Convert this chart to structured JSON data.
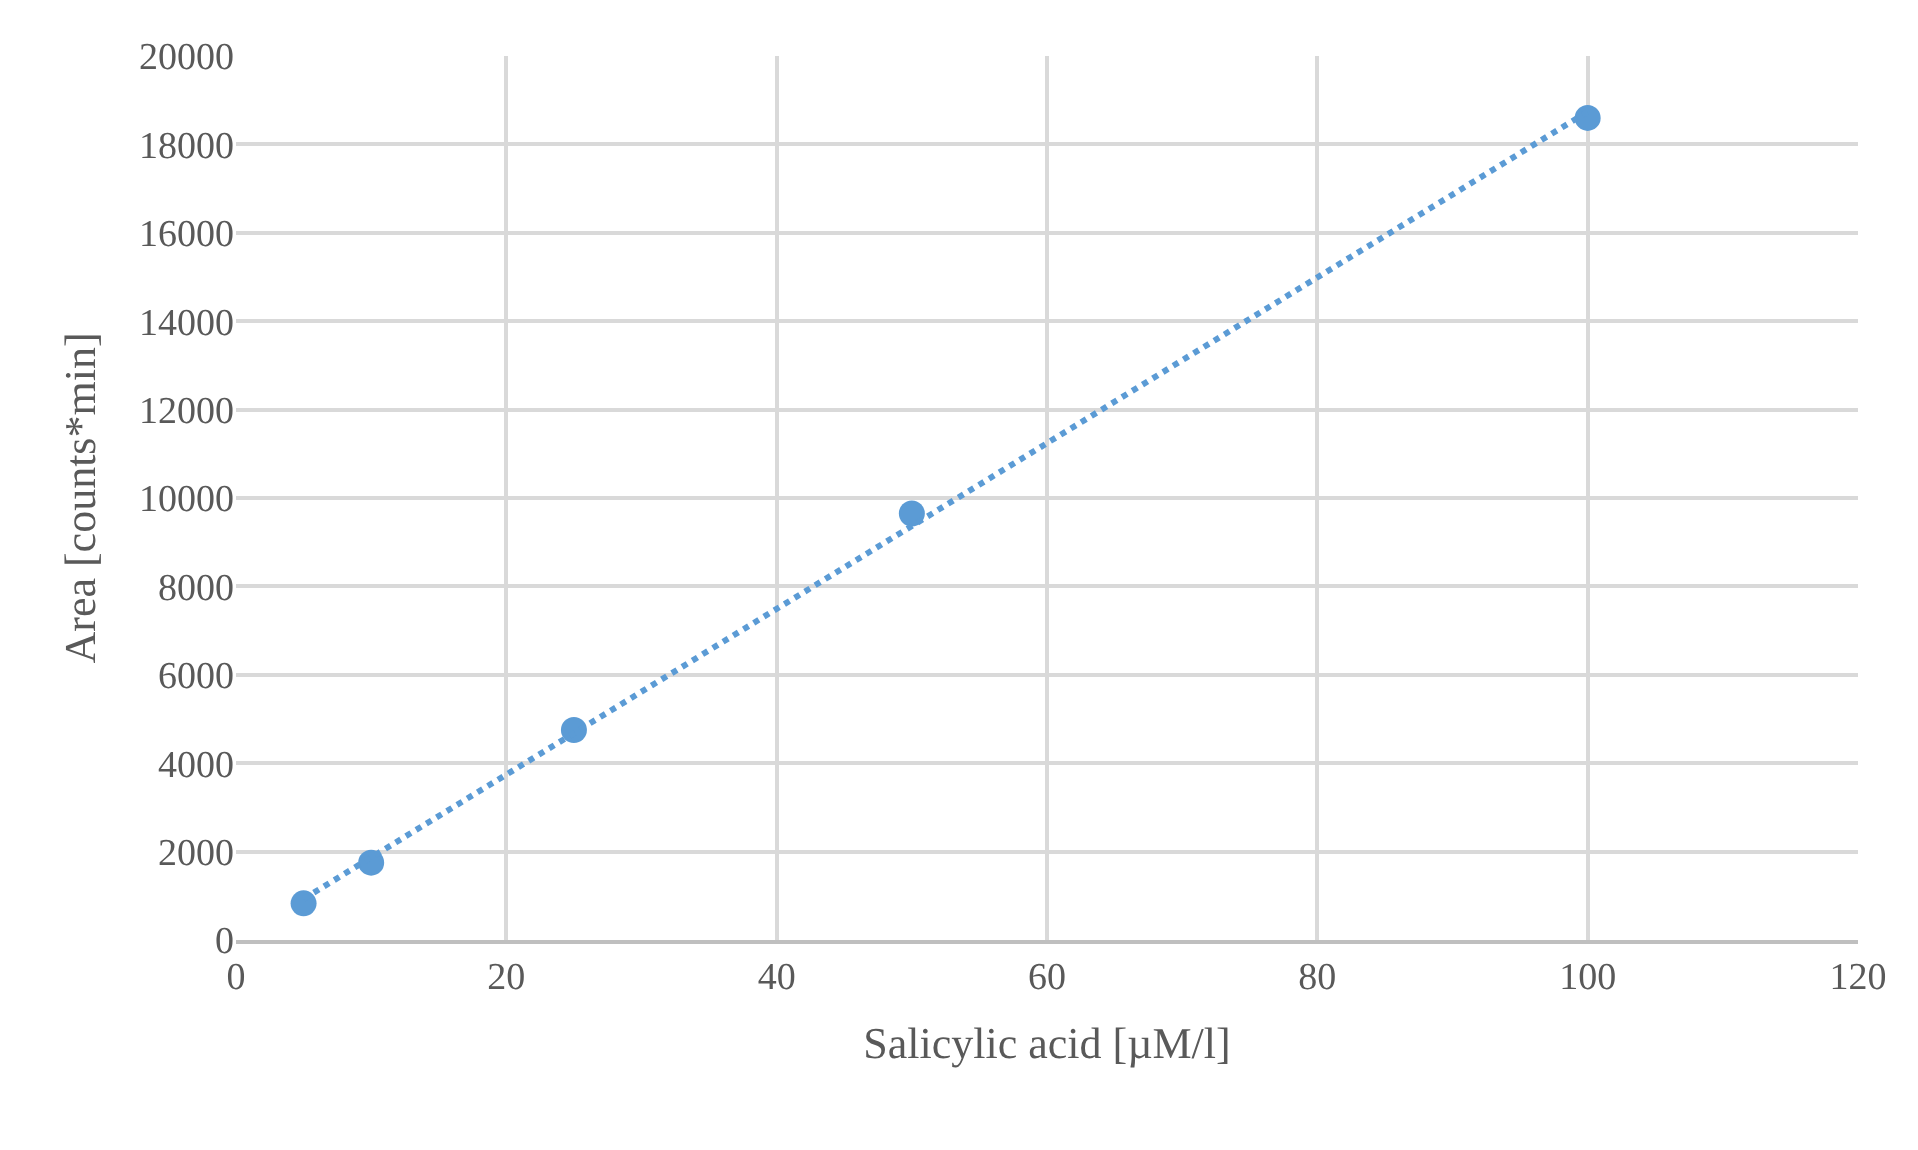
{
  "chart_data": {
    "type": "scatter",
    "xlabel": "Salicylic acid [µM/l]",
    "ylabel": "Area [counts*min]",
    "series": [
      {
        "color": "#5b9bd5",
        "x": [
          5,
          10,
          25,
          50,
          100
        ],
        "values": [
          830,
          1750,
          4750,
          9650,
          18600
        ],
        "marker": "circle"
      },
      {
        "type": "line",
        "color": "#5b9bd5",
        "x": [
          5,
          100
        ],
        "values": [
          930,
          18740
        ],
        "marker": "none",
        "line_style": "dotted"
      }
    ],
    "xlim": [
      0,
      120
    ],
    "xticks": [
      0,
      20,
      40,
      60,
      80,
      100,
      120
    ],
    "ylim": [
      0,
      20000
    ],
    "yticks": [
      0,
      2000,
      4000,
      6000,
      8000,
      10000,
      12000,
      14000,
      16000,
      18000,
      20000
    ],
    "grid": true,
    "legend": false
  }
}
